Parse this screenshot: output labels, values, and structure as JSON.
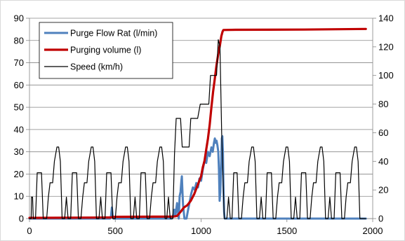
{
  "chart_data": {
    "type": "line",
    "x_axis": {
      "range": [
        0,
        2000
      ],
      "ticks": [
        "0",
        "500",
        "1000",
        "1500",
        "2000"
      ]
    },
    "y_left": {
      "range": [
        0,
        90
      ],
      "ticks": [
        "0",
        "10",
        "20",
        "30",
        "40",
        "50",
        "60",
        "70",
        "80",
        "90"
      ]
    },
    "y_right": {
      "range": [
        0,
        140
      ],
      "ticks": [
        "0",
        "20",
        "40",
        "60",
        "80",
        "100",
        "120",
        "140"
      ]
    },
    "grid": "horizontal",
    "legend_position": "top-left",
    "series": [
      {
        "name": "Purge Flow Rat (l/min)",
        "color": "#4f81bd",
        "axis": "left",
        "points": [
          [
            0,
            0
          ],
          [
            470,
            0
          ],
          [
            475,
            1
          ],
          [
            480,
            5
          ],
          [
            485,
            1
          ],
          [
            490,
            0
          ],
          [
            830,
            0
          ],
          [
            840,
            2
          ],
          [
            845,
            4
          ],
          [
            850,
            1
          ],
          [
            855,
            4
          ],
          [
            860,
            7
          ],
          [
            865,
            3
          ],
          [
            870,
            0
          ],
          [
            875,
            10
          ],
          [
            880,
            12
          ],
          [
            885,
            17
          ],
          [
            888,
            19
          ],
          [
            892,
            11
          ],
          [
            895,
            6
          ],
          [
            900,
            2
          ],
          [
            903,
            0
          ],
          [
            915,
            0
          ],
          [
            922,
            3
          ],
          [
            932,
            7
          ],
          [
            942,
            11
          ],
          [
            952,
            14
          ],
          [
            962,
            13
          ],
          [
            972,
            16
          ],
          [
            982,
            14
          ],
          [
            990,
            18
          ],
          [
            1000,
            17
          ],
          [
            1010,
            22
          ],
          [
            1020,
            26
          ],
          [
            1030,
            25
          ],
          [
            1040,
            30
          ],
          [
            1050,
            28
          ],
          [
            1060,
            32
          ],
          [
            1068,
            30
          ],
          [
            1075,
            34
          ],
          [
            1080,
            36
          ],
          [
            1085,
            34
          ],
          [
            1090,
            35
          ],
          [
            1095,
            33
          ],
          [
            1100,
            30
          ],
          [
            1104,
            22
          ],
          [
            1108,
            8
          ],
          [
            1112,
            12
          ],
          [
            1117,
            25
          ],
          [
            1121,
            36
          ],
          [
            1124,
            37
          ],
          [
            1127,
            30
          ],
          [
            1130,
            15
          ],
          [
            1134,
            3
          ],
          [
            1138,
            0
          ],
          [
            1140,
            0
          ],
          [
            1960,
            0
          ]
        ]
      },
      {
        "name": "Purging volume (l)",
        "color": "#c00000",
        "axis": "left",
        "points": [
          [
            0,
            0.3
          ],
          [
            470,
            0.5
          ],
          [
            490,
            0.8
          ],
          [
            840,
            0.9
          ],
          [
            860,
            1.2
          ],
          [
            880,
            3
          ],
          [
            900,
            5
          ],
          [
            920,
            6
          ],
          [
            940,
            8
          ],
          [
            960,
            11
          ],
          [
            980,
            15
          ],
          [
            1000,
            19
          ],
          [
            1010,
            23
          ],
          [
            1020,
            26
          ],
          [
            1030,
            31
          ],
          [
            1040,
            36
          ],
          [
            1050,
            42
          ],
          [
            1060,
            50
          ],
          [
            1070,
            57
          ],
          [
            1080,
            63
          ],
          [
            1090,
            69
          ],
          [
            1100,
            74
          ],
          [
            1110,
            78
          ],
          [
            1118,
            82
          ],
          [
            1125,
            84
          ],
          [
            1130,
            84.7
          ],
          [
            1200,
            84.8
          ],
          [
            1600,
            84.9
          ],
          [
            1960,
            85.2
          ]
        ]
      },
      {
        "name": "Speed (km/h)",
        "color": "#000000",
        "axis": "right",
        "points": [
          [
            0,
            0
          ],
          [
            10,
            0
          ],
          [
            12,
            15
          ],
          [
            18,
            15
          ],
          [
            22,
            0
          ],
          [
            35,
            0
          ],
          [
            45,
            32
          ],
          [
            70,
            32
          ],
          [
            80,
            0
          ],
          [
            100,
            0
          ],
          [
            110,
            15
          ],
          [
            120,
            25
          ],
          [
            135,
            25
          ],
          [
            145,
            40
          ],
          [
            160,
            50
          ],
          [
            170,
            50
          ],
          [
            180,
            40
          ],
          [
            190,
            0
          ],
          [
            205,
            0
          ],
          [
            215,
            15
          ],
          [
            225,
            0
          ],
          [
            240,
            0
          ],
          [
            250,
            32
          ],
          [
            275,
            32
          ],
          [
            285,
            0
          ],
          [
            300,
            0
          ],
          [
            310,
            15
          ],
          [
            320,
            25
          ],
          [
            335,
            25
          ],
          [
            345,
            40
          ],
          [
            360,
            50
          ],
          [
            370,
            50
          ],
          [
            380,
            40
          ],
          [
            390,
            0
          ],
          [
            405,
            0
          ],
          [
            415,
            15
          ],
          [
            425,
            0
          ],
          [
            440,
            0
          ],
          [
            450,
            32
          ],
          [
            475,
            32
          ],
          [
            485,
            0
          ],
          [
            500,
            0
          ],
          [
            510,
            15
          ],
          [
            520,
            25
          ],
          [
            535,
            25
          ],
          [
            545,
            40
          ],
          [
            560,
            50
          ],
          [
            570,
            50
          ],
          [
            580,
            40
          ],
          [
            590,
            0
          ],
          [
            605,
            0
          ],
          [
            615,
            15
          ],
          [
            625,
            0
          ],
          [
            640,
            0
          ],
          [
            650,
            32
          ],
          [
            675,
            32
          ],
          [
            685,
            0
          ],
          [
            700,
            0
          ],
          [
            710,
            15
          ],
          [
            720,
            25
          ],
          [
            735,
            25
          ],
          [
            745,
            40
          ],
          [
            760,
            50
          ],
          [
            770,
            50
          ],
          [
            780,
            40
          ],
          [
            790,
            0
          ],
          [
            800,
            0
          ],
          [
            810,
            15
          ],
          [
            820,
            0
          ],
          [
            835,
            0
          ],
          [
            845,
            45
          ],
          [
            855,
            70
          ],
          [
            880,
            70
          ],
          [
            890,
            50
          ],
          [
            930,
            50
          ],
          [
            940,
            70
          ],
          [
            980,
            70
          ],
          [
            995,
            80
          ],
          [
            1045,
            80
          ],
          [
            1055,
            100
          ],
          [
            1090,
            100
          ],
          [
            1100,
            125
          ],
          [
            1110,
            120
          ],
          [
            1120,
            60
          ],
          [
            1135,
            0
          ],
          [
            1150,
            0
          ],
          [
            1160,
            15
          ],
          [
            1170,
            0
          ],
          [
            1180,
            0
          ],
          [
            1190,
            32
          ],
          [
            1210,
            32
          ],
          [
            1220,
            0
          ],
          [
            1235,
            0
          ],
          [
            1245,
            15
          ],
          [
            1255,
            25
          ],
          [
            1270,
            25
          ],
          [
            1280,
            40
          ],
          [
            1295,
            50
          ],
          [
            1305,
            50
          ],
          [
            1315,
            40
          ],
          [
            1325,
            0
          ],
          [
            1340,
            0
          ],
          [
            1350,
            15
          ],
          [
            1360,
            0
          ],
          [
            1375,
            0
          ],
          [
            1385,
            32
          ],
          [
            1410,
            32
          ],
          [
            1420,
            0
          ],
          [
            1435,
            0
          ],
          [
            1445,
            15
          ],
          [
            1455,
            25
          ],
          [
            1470,
            25
          ],
          [
            1480,
            40
          ],
          [
            1495,
            50
          ],
          [
            1505,
            50
          ],
          [
            1515,
            40
          ],
          [
            1525,
            0
          ],
          [
            1540,
            0
          ],
          [
            1550,
            15
          ],
          [
            1560,
            0
          ],
          [
            1575,
            0
          ],
          [
            1585,
            32
          ],
          [
            1610,
            32
          ],
          [
            1620,
            0
          ],
          [
            1635,
            0
          ],
          [
            1645,
            15
          ],
          [
            1655,
            25
          ],
          [
            1670,
            25
          ],
          [
            1680,
            40
          ],
          [
            1695,
            50
          ],
          [
            1705,
            50
          ],
          [
            1715,
            40
          ],
          [
            1725,
            0
          ],
          [
            1740,
            0
          ],
          [
            1750,
            15
          ],
          [
            1760,
            0
          ],
          [
            1775,
            0
          ],
          [
            1785,
            32
          ],
          [
            1810,
            32
          ],
          [
            1820,
            0
          ],
          [
            1835,
            0
          ],
          [
            1845,
            15
          ],
          [
            1855,
            25
          ],
          [
            1870,
            25
          ],
          [
            1880,
            40
          ],
          [
            1895,
            50
          ],
          [
            1905,
            50
          ],
          [
            1915,
            40
          ],
          [
            1925,
            0
          ],
          [
            1960,
            0
          ]
        ]
      }
    ]
  }
}
